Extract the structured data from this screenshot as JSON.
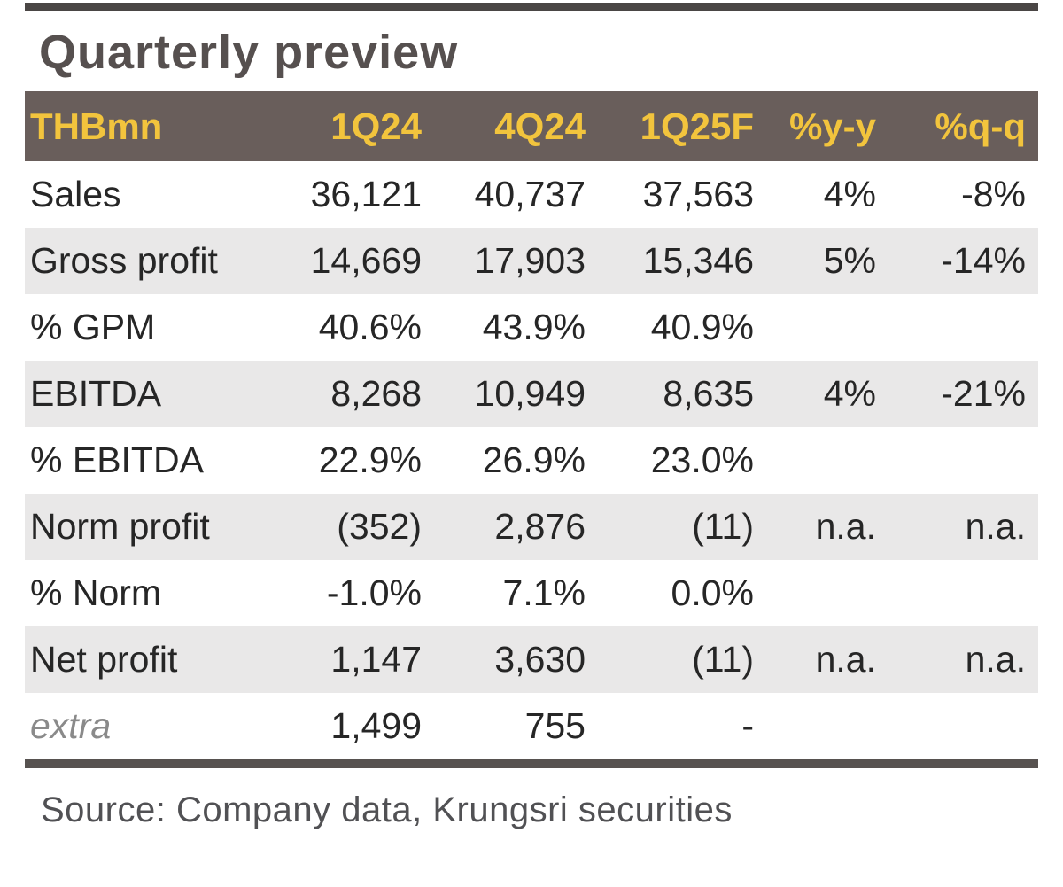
{
  "title": "Quarterly preview",
  "table": {
    "columns": [
      "THBmn",
      "1Q24",
      "4Q24",
      "1Q25F",
      "%y-y",
      "%q-q"
    ],
    "rows": [
      {
        "label": "Sales",
        "values": [
          "36,121",
          "40,737",
          "37,563",
          "4%",
          "-8%"
        ]
      },
      {
        "label": "Gross profit",
        "values": [
          "14,669",
          "17,903",
          "15,346",
          "5%",
          "-14%"
        ]
      },
      {
        "label": "% GPM",
        "values": [
          "40.6%",
          "43.9%",
          "40.9%",
          "",
          ""
        ]
      },
      {
        "label": "EBITDA",
        "values": [
          "8,268",
          "10,949",
          "8,635",
          "4%",
          "-21%"
        ]
      },
      {
        "label": "% EBITDA",
        "values": [
          "22.9%",
          "26.9%",
          "23.0%",
          "",
          ""
        ]
      },
      {
        "label": "Norm profit",
        "values": [
          "(352)",
          "2,876",
          "(11)",
          "n.a.",
          "n.a."
        ]
      },
      {
        "label": "% Norm",
        "values": [
          "-1.0%",
          "7.1%",
          "0.0%",
          "",
          ""
        ]
      },
      {
        "label": "Net profit",
        "values": [
          "1,147",
          "3,630",
          "(11)",
          "n.a.",
          "n.a."
        ]
      },
      {
        "label": "extra",
        "values": [
          "1,499",
          "755",
          "-",
          "",
          ""
        ],
        "italic": true
      }
    ]
  },
  "source": "Source: Company data, Krungsri securities",
  "colors": {
    "top_rule": "#4a4645",
    "title_text": "#56504f",
    "header_bg": "#695e5b",
    "header_text": "#f2c43d",
    "row_alt_bg": "#e9e8e8",
    "body_text": "#262626",
    "extra_label": "#8a8a8a",
    "bottom_rule": "#575250",
    "source_text": "#515154"
  }
}
